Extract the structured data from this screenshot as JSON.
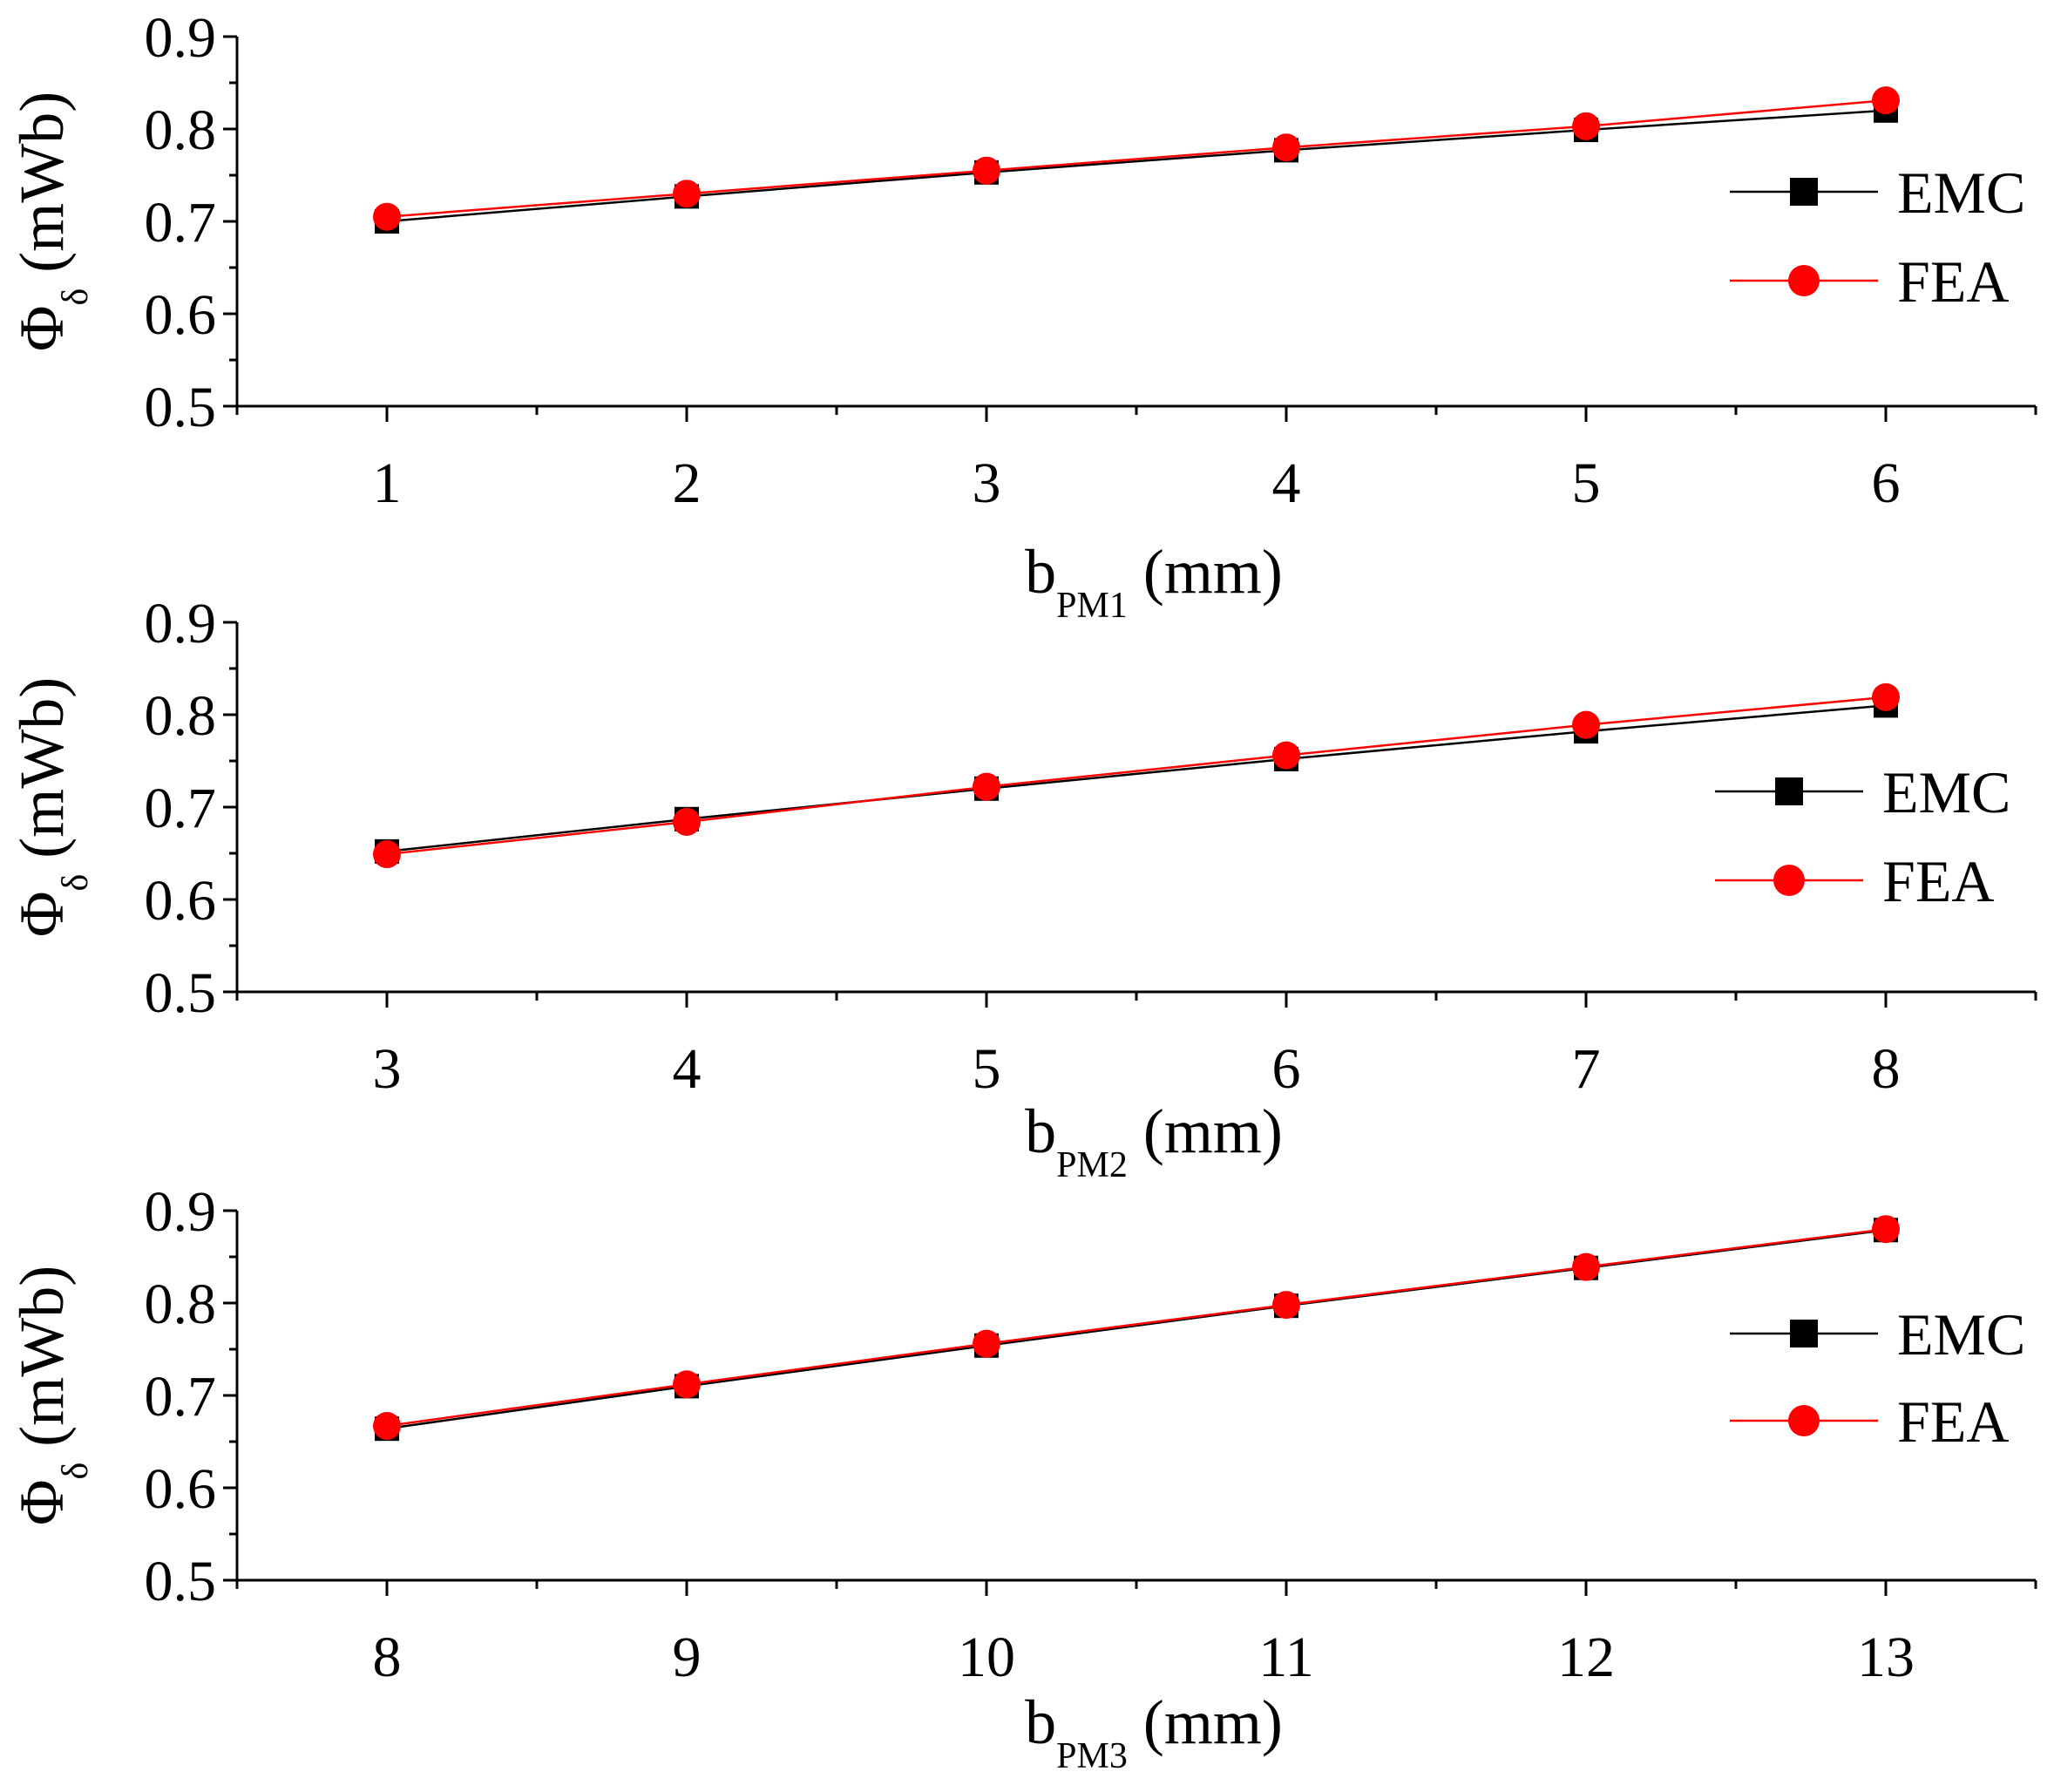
{
  "chart_data": [
    {
      "type": "line",
      "xlabel": "b",
      "xlabel_sub": "PM1",
      "xlabel_unit": " (mm)",
      "ylabel": "Φ",
      "ylabel_sub": "δ",
      "ylabel_unit": " (mWb)",
      "xlim": [
        0.5,
        6.5
      ],
      "ylim": [
        0.5,
        0.9
      ],
      "xticks": [
        1,
        2,
        3,
        4,
        5,
        6
      ],
      "yticks": [
        "0.5",
        "0.6",
        "0.7",
        "0.8",
        "0.9"
      ],
      "legend_position": "right",
      "series": [
        {
          "name": "EMC",
          "color": "#000000",
          "marker": "square",
          "x": [
            1,
            2,
            3,
            4,
            5,
            6
          ],
          "values": [
            0.7,
            0.727,
            0.753,
            0.777,
            0.799,
            0.82
          ]
        },
        {
          "name": "FEA",
          "color": "#ff0000",
          "marker": "circle",
          "x": [
            1,
            2,
            3,
            4,
            5,
            6
          ],
          "values": [
            0.705,
            0.73,
            0.755,
            0.78,
            0.803,
            0.831
          ]
        }
      ]
    },
    {
      "type": "line",
      "xlabel": "b",
      "xlabel_sub": "PM2",
      "xlabel_unit": " (mm)",
      "ylabel": "Φ",
      "ylabel_sub": "δ",
      "ylabel_unit": " (mWb)",
      "xlim": [
        2.5,
        8.5
      ],
      "ylim": [
        0.5,
        0.9
      ],
      "xticks": [
        3,
        4,
        5,
        6,
        7,
        8
      ],
      "yticks": [
        "0.5",
        "0.6",
        "0.7",
        "0.8",
        "0.9"
      ],
      "legend_position": "right",
      "series": [
        {
          "name": "EMC",
          "color": "#000000",
          "marker": "square",
          "x": [
            3,
            4,
            5,
            6,
            7,
            8
          ],
          "values": [
            0.652,
            0.687,
            0.72,
            0.752,
            0.782,
            0.81
          ]
        },
        {
          "name": "FEA",
          "color": "#ff0000",
          "marker": "circle",
          "x": [
            3,
            4,
            5,
            6,
            7,
            8
          ],
          "values": [
            0.649,
            0.684,
            0.722,
            0.756,
            0.789,
            0.819
          ]
        }
      ]
    },
    {
      "type": "line",
      "xlabel": "b",
      "xlabel_sub": "PM3",
      "xlabel_unit": " (mm)",
      "ylabel": "Φ",
      "ylabel_sub": "δ",
      "ylabel_unit": " (mWb)",
      "xlim": [
        7.5,
        13.5
      ],
      "ylim": [
        0.5,
        0.9
      ],
      "xticks": [
        8,
        9,
        10,
        11,
        12,
        13
      ],
      "yticks": [
        "0.5",
        "0.6",
        "0.7",
        "0.8",
        "0.9"
      ],
      "legend_position": "right",
      "series": [
        {
          "name": "EMC",
          "color": "#000000",
          "marker": "square",
          "x": [
            8,
            9,
            10,
            11,
            12,
            13
          ],
          "values": [
            0.664,
            0.71,
            0.754,
            0.797,
            0.838,
            0.879
          ]
        },
        {
          "name": "FEA",
          "color": "#ff0000",
          "marker": "circle",
          "x": [
            8,
            9,
            10,
            11,
            12,
            13
          ],
          "values": [
            0.667,
            0.712,
            0.756,
            0.798,
            0.839,
            0.88
          ]
        }
      ]
    }
  ]
}
